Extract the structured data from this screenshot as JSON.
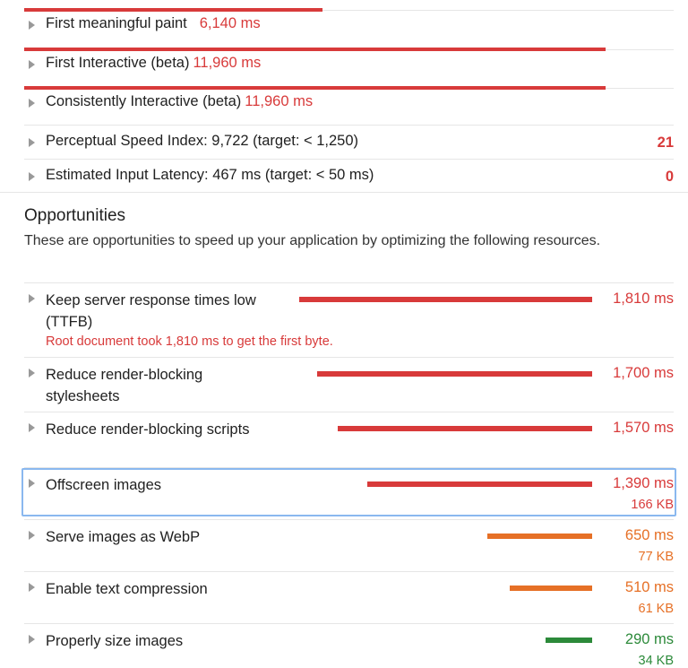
{
  "colors": {
    "red": "#d83a3a",
    "orange": "#e67026",
    "green": "#2c8a3a",
    "highlight": "#8ab8ef"
  },
  "metrics": [
    {
      "label": "First meaningful paint",
      "value": "6,140 ms",
      "ms": 6140
    },
    {
      "label": "First Interactive (beta)",
      "value": "11,960 ms",
      "ms": 11960
    },
    {
      "label": "Consistently Interactive (beta)",
      "value": "11,960 ms",
      "ms": 11960
    }
  ],
  "scored": [
    {
      "label": "Perceptual Speed Index: 9,722 (target: < 1,250)",
      "score": "21"
    },
    {
      "label": "Estimated Input Latency: 467 ms (target: < 50 ms)",
      "score": "0"
    }
  ],
  "opportunities": {
    "title": "Opportunities",
    "description": "These are opportunities to speed up your application by optimizing the following resources.",
    "items": [
      {
        "label": "Keep server response times low (TTFB)",
        "value": "1,810 ms",
        "ms": 1810,
        "size": "",
        "color": "red",
        "detail": "Root document took 1,810 ms to get the first byte."
      },
      {
        "label": "Reduce render-blocking stylesheets",
        "value": "1,700 ms",
        "ms": 1700,
        "size": "",
        "color": "red",
        "detail": ""
      },
      {
        "label": "Reduce render-blocking scripts",
        "value": "1,570 ms",
        "ms": 1570,
        "size": "",
        "color": "red",
        "detail": ""
      },
      {
        "label": "Offscreen images",
        "value": "1,390 ms",
        "ms": 1390,
        "size": "166 KB",
        "color": "red",
        "detail": "",
        "selected": true
      },
      {
        "label": "Serve images as WebP",
        "value": "650 ms",
        "ms": 650,
        "size": "77 KB",
        "color": "orange",
        "detail": ""
      },
      {
        "label": "Enable text compression",
        "value": "510 ms",
        "ms": 510,
        "size": "61 KB",
        "color": "orange",
        "detail": ""
      },
      {
        "label": "Properly size images",
        "value": "290 ms",
        "ms": 290,
        "size": "34 KB",
        "color": "green",
        "detail": ""
      }
    ]
  }
}
